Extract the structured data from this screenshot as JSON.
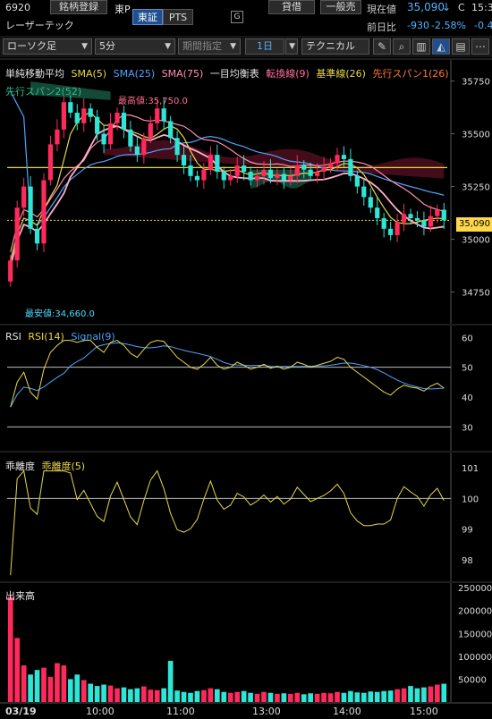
{
  "header": {
    "code": "6920",
    "register_button": "銘柄登録",
    "exchange": "東P",
    "market_tabs": [
      {
        "label": "東証",
        "active": true
      },
      {
        "label": "PTS",
        "active": false
      }
    ],
    "g_label": "G",
    "name": "レーザーテック",
    "lend_label": "貸借",
    "general_label": "一般売",
    "current_label": "現在値",
    "current_price": "35,090",
    "arrow": "↓",
    "c_label": "C",
    "time": "15:3",
    "prev_label": "前日比",
    "change": "-930",
    "change_pct": "-2.58%",
    "change_extra": "-0.4"
  },
  "toolbar": {
    "chart_type": "ローソク足",
    "interval": "5分",
    "period": "期間指定",
    "range": "1日",
    "technical": "テクニカル",
    "icons": [
      "pencil-icon",
      "zoom-icon",
      "bar-icon",
      "area-icon",
      "extra-icon"
    ]
  },
  "main_chart": {
    "legend": [
      {
        "text": "単純移動平均",
        "color": "#e6e6e6"
      },
      {
        "text": "SMA(5)",
        "color": "#e8d84a"
      },
      {
        "text": "SMA(25)",
        "color": "#4fa3ff"
      },
      {
        "text": "SMA(75)",
        "color": "#ff8fb0"
      },
      {
        "text": "一目均衡表",
        "color": "#e6e6e6"
      },
      {
        "text": "転換線(9)",
        "color": "#ff6fa0"
      },
      {
        "text": "基準線(26)",
        "color": "#e8d84a"
      },
      {
        "text": "先行スパン1(26)",
        "color": "#ff7a3a"
      }
    ],
    "legend2": "先行スパン2(52)",
    "high_label": "最高値:35,750.0",
    "low_label": "最安値:34,660.0",
    "y_ticks": [
      "35750",
      "35500",
      "35250",
      "35000",
      "34750"
    ],
    "current_price_tag": "35,090"
  },
  "rsi_panel": {
    "legend": [
      {
        "text": "RSI",
        "color": "#e6e6e6"
      },
      {
        "text": "RSI(14)",
        "color": "#e8d84a"
      },
      {
        "text": "Signal(9)",
        "color": "#4fa3ff"
      }
    ],
    "y_ticks": [
      "60",
      "50",
      "40",
      "30"
    ]
  },
  "dev_panel": {
    "legend": [
      {
        "text": "乖離度",
        "color": "#e6e6e6"
      },
      {
        "text": "乖離度(5)",
        "color": "#e8d84a"
      }
    ],
    "y_ticks": [
      "101",
      "100",
      "99",
      "98"
    ]
  },
  "volume_panel": {
    "legend": [
      {
        "text": "出来高",
        "color": "#e6e6e6"
      }
    ],
    "y_ticks": [
      "250000",
      "200000",
      "150000",
      "100000",
      "50000"
    ]
  },
  "x_axis": [
    "03/19",
    "10:00",
    "11:00",
    "13:00",
    "14:00",
    "15:00"
  ],
  "chart_data": {
    "type": "candlestick",
    "interval": "5分",
    "ylim": [
      34600,
      35850
    ],
    "x": [
      "09:00",
      "09:05",
      "09:10",
      "09:15",
      "09:20",
      "09:25",
      "09:30",
      "09:35",
      "09:40",
      "09:45",
      "09:50",
      "09:55",
      "10:00",
      "10:05",
      "10:10",
      "10:15",
      "10:20",
      "10:25",
      "10:30",
      "10:35",
      "10:40",
      "10:45",
      "10:50",
      "10:55",
      "11:00",
      "11:05",
      "11:10",
      "11:15",
      "11:20",
      "11:25",
      "12:30",
      "12:35",
      "12:40",
      "12:45",
      "12:50",
      "12:55",
      "13:00",
      "13:05",
      "13:10",
      "13:15",
      "13:20",
      "13:25",
      "13:30",
      "13:35",
      "13:40",
      "13:45",
      "13:50",
      "13:55",
      "14:00",
      "14:05",
      "14:10",
      "14:15",
      "14:20",
      "14:25",
      "14:30",
      "14:35",
      "14:40",
      "14:45",
      "14:50",
      "14:55",
      "15:00",
      "15:05",
      "15:10",
      "15:15",
      "15:20",
      "15:25"
    ],
    "close": [
      34900,
      35150,
      35250,
      35050,
      34980,
      35280,
      35450,
      35520,
      35650,
      35600,
      35550,
      35620,
      35580,
      35500,
      35450,
      35550,
      35600,
      35520,
      35440,
      35400,
      35480,
      35550,
      35620,
      35560,
      35480,
      35400,
      35350,
      35300,
      35280,
      35330,
      35400,
      35320,
      35280,
      35300,
      35350,
      35320,
      35280,
      35300,
      35330,
      35290,
      35310,
      35280,
      35300,
      35350,
      35330,
      35300,
      35320,
      35340,
      35360,
      35400,
      35380,
      35300,
      35250,
      35200,
      35150,
      35100,
      35050,
      35020,
      35080,
      35120,
      35100,
      35090,
      35060,
      35110,
      35140,
      35090
    ],
    "volume": [
      230000,
      140000,
      80000,
      60000,
      70000,
      75000,
      55000,
      85000,
      80000,
      50000,
      60000,
      48000,
      40000,
      35000,
      38000,
      36000,
      30000,
      32000,
      28000,
      30000,
      34000,
      27000,
      26000,
      30000,
      90000,
      25000,
      22000,
      20000,
      24000,
      26000,
      30000,
      28000,
      22000,
      20000,
      22000,
      24000,
      20000,
      18000,
      22000,
      20000,
      18000,
      19000,
      18000,
      20000,
      17000,
      19000,
      18000,
      20000,
      19000,
      22000,
      20000,
      24000,
      21000,
      20000,
      23000,
      22000,
      24000,
      25000,
      28000,
      30000,
      35000,
      30000,
      32000,
      34000,
      38000,
      40000
    ]
  }
}
